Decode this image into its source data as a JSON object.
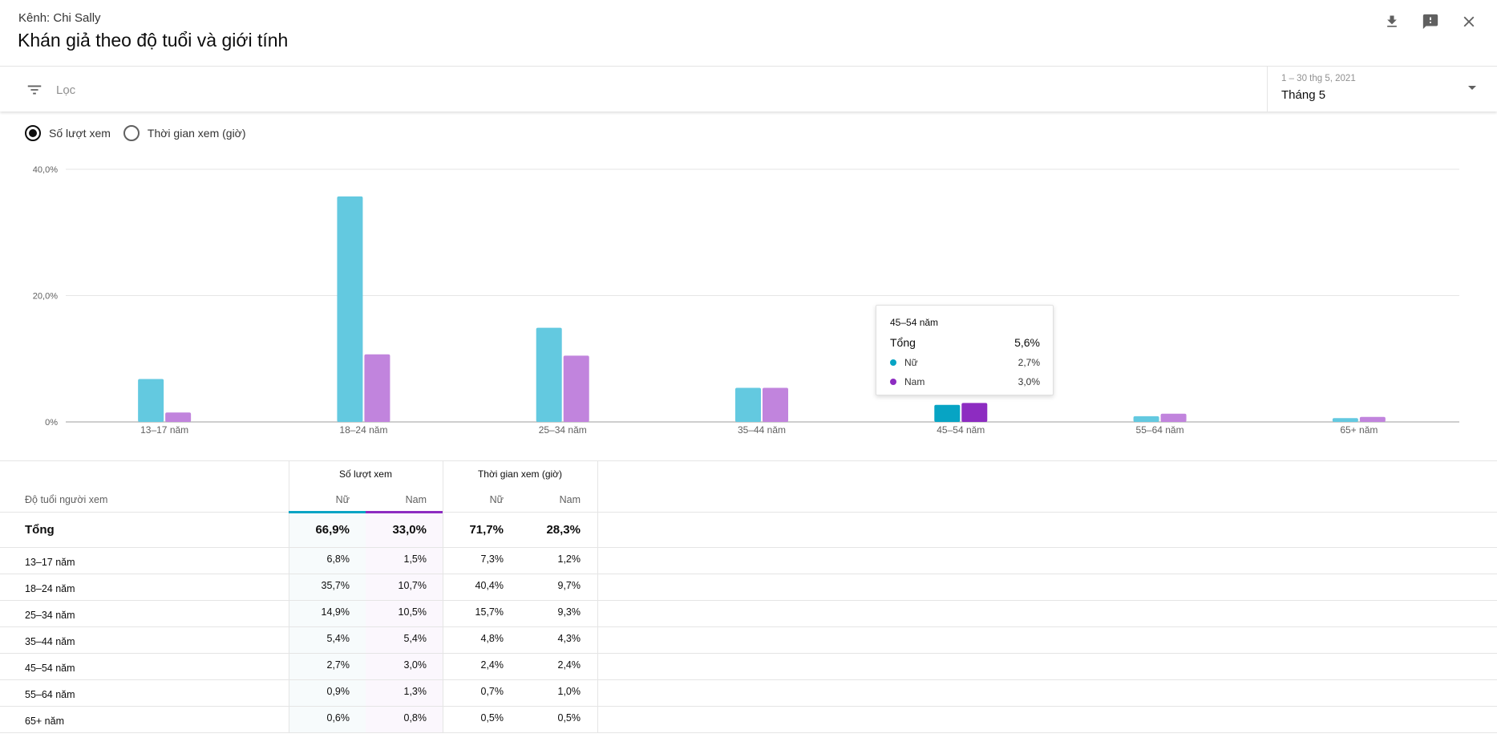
{
  "header": {
    "channel": "Kênh: Chi Sally",
    "title": "Khán giả theo độ tuổi và giới tính"
  },
  "filter": {
    "placeholder": "Lọc"
  },
  "date": {
    "range": "1 – 30 thg 5, 2021",
    "label": "Tháng 5"
  },
  "metric_options": [
    {
      "label": "Số lượt xem",
      "selected": true
    },
    {
      "label": "Thời gian xem (giờ)",
      "selected": false
    }
  ],
  "colors": {
    "female": "#63c9e0",
    "male": "#c184dd",
    "female_active": "#07a4c4",
    "male_active": "#8d2cc1",
    "gridline": "#e6e6e6"
  },
  "chart_data": {
    "type": "bar",
    "categories": [
      "13–17 năm",
      "18–24 năm",
      "25–34 năm",
      "35–44 năm",
      "45–54 năm",
      "55–64 năm",
      "65+ năm"
    ],
    "series": [
      {
        "name": "Nữ",
        "values": [
          6.8,
          35.7,
          14.9,
          5.4,
          2.7,
          0.9,
          0.6
        ]
      },
      {
        "name": "Nam",
        "values": [
          1.5,
          10.7,
          10.5,
          5.4,
          3.0,
          1.3,
          0.8
        ]
      }
    ],
    "yticks": [
      "0%",
      "20,0%",
      "40,0%"
    ],
    "ylim": [
      0,
      40
    ],
    "highlighted_category": "45–54 năm",
    "grid": true
  },
  "tooltip": {
    "title": "45–54 năm",
    "total_label": "Tổng",
    "total_value": "5,6%",
    "female_label": "Nữ",
    "female_value": "2,7%",
    "male_label": "Nam",
    "male_value": "3,0%"
  },
  "table": {
    "age_header": "Độ tuổi người xem",
    "group_views": "Số lượt xem",
    "group_watch": "Thời gian xem (giờ)",
    "sub_female": "Nữ",
    "sub_male": "Nam",
    "total_label": "Tổng",
    "total": [
      "66,9%",
      "33,0%",
      "71,7%",
      "28,3%"
    ],
    "rows": [
      {
        "age": "13–17 năm",
        "values": [
          "6,8%",
          "1,5%",
          "7,3%",
          "1,2%"
        ]
      },
      {
        "age": "18–24 năm",
        "values": [
          "35,7%",
          "10,7%",
          "40,4%",
          "9,7%"
        ]
      },
      {
        "age": "25–34 năm",
        "values": [
          "14,9%",
          "10,5%",
          "15,7%",
          "9,3%"
        ]
      },
      {
        "age": "35–44 năm",
        "values": [
          "5,4%",
          "5,4%",
          "4,8%",
          "4,3%"
        ]
      },
      {
        "age": "45–54 năm",
        "values": [
          "2,7%",
          "3,0%",
          "2,4%",
          "2,4%"
        ]
      },
      {
        "age": "55–64 năm",
        "values": [
          "0,9%",
          "1,3%",
          "0,7%",
          "1,0%"
        ]
      },
      {
        "age": "65+ năm",
        "values": [
          "0,6%",
          "0,8%",
          "0,5%",
          "0,5%"
        ]
      }
    ]
  }
}
